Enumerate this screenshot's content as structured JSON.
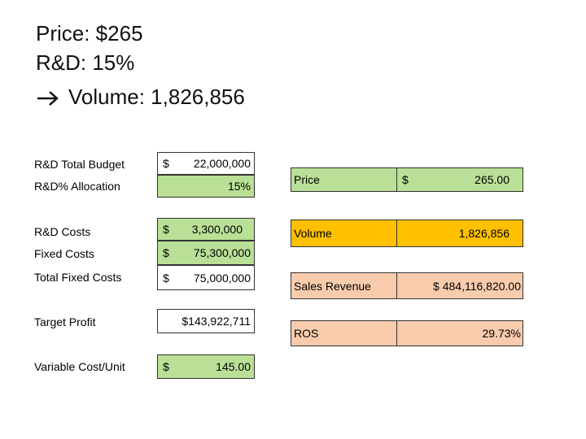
{
  "header": {
    "lines": [
      "Price: $265",
      "R&D: 15%",
      "Volume: 1,826,856"
    ]
  },
  "left_table": {
    "rows": [
      {
        "label": "R&D Total Budget",
        "currency": "$",
        "amount": "22,000,000"
      },
      {
        "label": "R&D% Allocation",
        "amount": "15%"
      },
      {
        "label": "R&D Costs",
        "currency": "$",
        "amount": "3,300,000"
      },
      {
        "label": "Fixed Costs",
        "currency": "$",
        "amount": "75,300,000"
      },
      {
        "label": "Total Fixed Costs",
        "currency": "$",
        "amount": "75,000,000"
      },
      {
        "label": "Target Profit",
        "amount": "$143,922,711"
      },
      {
        "label": "Variable Cost/Unit",
        "currency": "$",
        "amount": "145.00"
      }
    ]
  },
  "right_table": {
    "rows": [
      {
        "label": "Price",
        "currency": "$",
        "amount": "265.00"
      },
      {
        "label": "Volume",
        "amount": "1,826,856"
      },
      {
        "label": "Sales Revenue",
        "amount": "$ 484,116,820.00"
      },
      {
        "label": "ROS",
        "amount": "29.73%"
      }
    ]
  }
}
